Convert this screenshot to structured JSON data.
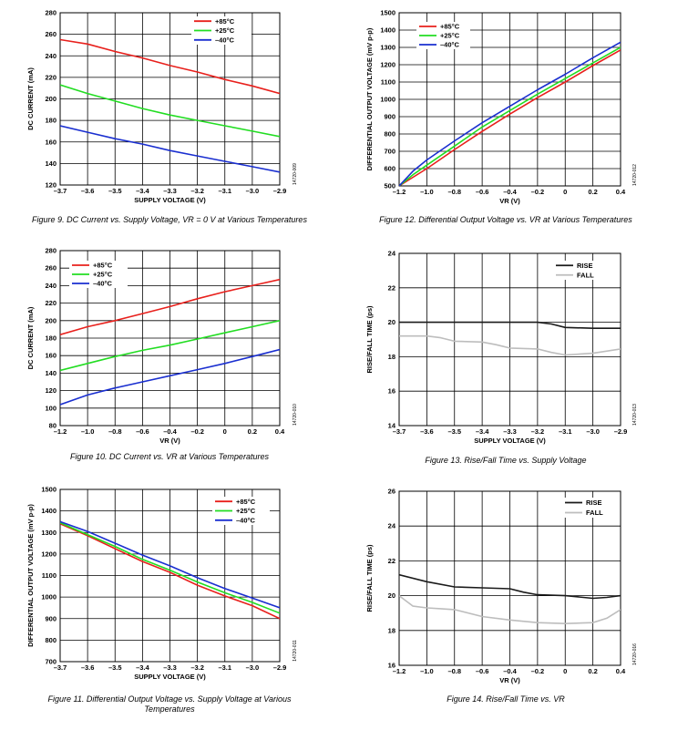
{
  "figures": [
    {
      "id": "fig9",
      "caption": [
        "Figure 9. DC Current vs. Supply Voltage, VR = 0 V at Various Temperatures"
      ],
      "code": "14720-009",
      "chart_data": {
        "type": "line",
        "xlabel": "SUPPLY VOLTAGE (V)",
        "ylabel": "DC CURRENT (mA)",
        "xlim": [
          -3.7,
          -2.9
        ],
        "ylim": [
          120,
          280
        ],
        "xticks": [
          -3.7,
          -3.6,
          -3.5,
          -3.4,
          -3.3,
          -3.2,
          -3.1,
          -3.0,
          -2.9
        ],
        "xtick_labels": [
          "–3.7",
          "–3.6",
          "–3.5",
          "–3.4",
          "–3.3",
          "–3.2",
          "–3.1",
          "–3.0",
          "–2.9"
        ],
        "yticks": [
          120,
          140,
          160,
          180,
          200,
          220,
          240,
          260,
          280
        ],
        "ytick_labels": [
          "120",
          "140",
          "160",
          "180",
          "200",
          "220",
          "240",
          "260",
          "280"
        ],
        "grid": true,
        "legend_position": "top-right",
        "series": [
          {
            "name": "+85°C",
            "color": "#e8201c",
            "x": [
              -3.7,
              -3.6,
              -3.5,
              -3.4,
              -3.3,
              -3.2,
              -3.1,
              -3.0,
              -2.9
            ],
            "y": [
              255,
              251,
              244,
              238,
              231,
              225,
              218,
              212,
              205
            ]
          },
          {
            "name": "+25°C",
            "color": "#22dd22",
            "x": [
              -3.7,
              -3.6,
              -3.5,
              -3.4,
              -3.3,
              -3.2,
              -3.1,
              -3.0,
              -2.9
            ],
            "y": [
              213,
              205,
              198,
              191,
              185,
              180,
              175,
              170,
              165
            ]
          },
          {
            "name": "–40°C",
            "color": "#1a2fd0",
            "x": [
              -3.7,
              -3.6,
              -3.5,
              -3.4,
              -3.3,
              -3.2,
              -3.1,
              -3.0,
              -2.9
            ],
            "y": [
              175,
              169,
              163,
              158,
              152,
              147,
              142,
              137,
              132
            ]
          }
        ]
      }
    },
    {
      "id": "fig12",
      "caption": [
        "Figure 12. Differential Output Voltage vs. VR at Various Temperatures"
      ],
      "code": "14720-012",
      "chart_data": {
        "type": "line",
        "xlabel": "VR (V)",
        "ylabel": "DIFFERENTIAL OUTPUT VOLTAGE (mV p-p)",
        "xlim": [
          -1.2,
          0.4
        ],
        "ylim": [
          500,
          1500
        ],
        "xticks": [
          -1.2,
          -1.0,
          -0.8,
          -0.6,
          -0.4,
          -0.2,
          0,
          0.2,
          0.4
        ],
        "xtick_labels": [
          "–1.2",
          "–1.0",
          "–0.8",
          "–0.6",
          "–0.4",
          "–0.2",
          "0",
          "0.2",
          "0.4"
        ],
        "yticks": [
          500,
          600,
          700,
          800,
          900,
          1000,
          1100,
          1200,
          1300,
          1400,
          1500
        ],
        "ytick_labels": [
          "500",
          "600",
          "700",
          "800",
          "900",
          "1000",
          "1100",
          "1200",
          "1300",
          "1400",
          "1500"
        ],
        "grid": true,
        "legend_position": "top-left",
        "series": [
          {
            "name": "+85°C",
            "color": "#e8201c",
            "x": [
              -1.2,
              -1.1,
              -1.0,
              -0.8,
              -0.6,
              -0.4,
              -0.2,
              0,
              0.2,
              0.4
            ],
            "y": [
              500,
              550,
              600,
              710,
              815,
              915,
              1010,
              1100,
              1195,
              1285
            ]
          },
          {
            "name": "+25°C",
            "color": "#22dd22",
            "x": [
              -1.2,
              -1.1,
              -1.0,
              -0.8,
              -0.6,
              -0.4,
              -0.2,
              0,
              0.2,
              0.4
            ],
            "y": [
              500,
              565,
              620,
              730,
              840,
              935,
              1030,
              1120,
              1210,
              1300
            ]
          },
          {
            "name": "–40°C",
            "color": "#1a2fd0",
            "x": [
              -1.2,
              -1.1,
              -1.0,
              -0.8,
              -0.6,
              -0.4,
              -0.2,
              0,
              0.2,
              0.4
            ],
            "y": [
              500,
              585,
              650,
              760,
              865,
              960,
              1055,
              1145,
              1240,
              1330
            ]
          }
        ]
      }
    },
    {
      "id": "fig10",
      "caption": [
        "Figure 10. DC Current vs. VR at Various Temperatures"
      ],
      "code": "14720-010",
      "chart_data": {
        "type": "line",
        "xlabel": "VR (V)",
        "ylabel": "DC CURRENT (mA)",
        "xlim": [
          -1.2,
          0.4
        ],
        "ylim": [
          80,
          280
        ],
        "xticks": [
          -1.2,
          -1.0,
          -0.8,
          -0.6,
          -0.4,
          -0.2,
          0,
          0.2,
          0.4
        ],
        "xtick_labels": [
          "–1.2",
          "–1.0",
          "–0.8",
          "–0.6",
          "–0.4",
          "–0.2",
          "0",
          "0.2",
          "0.4"
        ],
        "yticks": [
          80,
          100,
          120,
          140,
          160,
          180,
          200,
          220,
          240,
          260,
          280
        ],
        "ytick_labels": [
          "80",
          "100",
          "120",
          "140",
          "160",
          "180",
          "200",
          "220",
          "240",
          "260",
          "280"
        ],
        "grid": true,
        "legend_position": "top-left",
        "series": [
          {
            "name": "+85°C",
            "color": "#e8201c",
            "x": [
              -1.2,
              -1.0,
              -0.8,
              -0.6,
              -0.4,
              -0.2,
              0,
              0.2,
              0.4
            ],
            "y": [
              184,
              193,
              200,
              208,
              216,
              225,
              233,
              240,
              247
            ]
          },
          {
            "name": "+25°C",
            "color": "#22dd22",
            "x": [
              -1.2,
              -1.0,
              -0.8,
              -0.6,
              -0.4,
              -0.2,
              0,
              0.2,
              0.4
            ],
            "y": [
              143,
              151,
              159,
              166,
              172,
              179,
              186,
              193,
              200
            ]
          },
          {
            "name": "–40°C",
            "color": "#1a2fd0",
            "x": [
              -1.2,
              -1.0,
              -0.8,
              -0.6,
              -0.4,
              -0.2,
              0,
              0.2,
              0.4
            ],
            "y": [
              104,
              115,
              123,
              130,
              137,
              144,
              151,
              159,
              167
            ]
          }
        ]
      }
    },
    {
      "id": "fig13",
      "caption": [
        "Figure 13. Rise/Fall Time vs. Supply Voltage"
      ],
      "code": "14720-013",
      "chart_data": {
        "type": "line",
        "xlabel": "SUPPLY VOLTAGE (V)",
        "ylabel": "RISE/FALL TIME (ps)",
        "xlim": [
          -3.7,
          -2.9
        ],
        "ylim": [
          14,
          24
        ],
        "xticks": [
          -3.7,
          -3.6,
          -3.5,
          -3.4,
          -3.3,
          -3.2,
          -3.1,
          -3.0,
          -2.9
        ],
        "xtick_labels": [
          "–3.7",
          "–3.6",
          "–3.5",
          "–3.4",
          "–3.3",
          "–3.2",
          "–3.1",
          "–3.0",
          "–2.9"
        ],
        "yticks": [
          14,
          16,
          18,
          20,
          22,
          24
        ],
        "ytick_labels": [
          "14",
          "16",
          "18",
          "20",
          "22",
          "24"
        ],
        "grid": true,
        "legend_position": "top-right",
        "series": [
          {
            "name": "RISE",
            "color": "#1a1a1a",
            "x": [
              -3.7,
              -3.6,
              -3.5,
              -3.4,
              -3.3,
              -3.2,
              -3.15,
              -3.1,
              -3.0,
              -2.9
            ],
            "y": [
              20.0,
              20.0,
              20.0,
              20.0,
              20.0,
              20.0,
              19.9,
              19.7,
              19.65,
              19.65
            ]
          },
          {
            "name": "FALL",
            "color": "#bdbdbd",
            "x": [
              -3.7,
              -3.6,
              -3.55,
              -3.5,
              -3.4,
              -3.35,
              -3.3,
              -3.2,
              -3.15,
              -3.1,
              -3.0,
              -2.9
            ],
            "y": [
              19.2,
              19.2,
              19.1,
              18.9,
              18.85,
              18.7,
              18.5,
              18.45,
              18.25,
              18.1,
              18.2,
              18.45
            ]
          }
        ]
      }
    },
    {
      "id": "fig11",
      "caption": [
        "Figure 11. Differential Output Voltage vs. Supply Voltage at Various",
        "Temperatures"
      ],
      "code": "14720-011",
      "chart_data": {
        "type": "line",
        "xlabel": "SUPPLY VOLTAGE (V)",
        "ylabel": "DIFFERENTIAL OUTPUT VOLTAGE (mV p-p)",
        "xlim": [
          -3.7,
          -2.9
        ],
        "ylim": [
          700,
          1500
        ],
        "xticks": [
          -3.7,
          -3.6,
          -3.5,
          -3.4,
          -3.3,
          -3.2,
          -3.1,
          -3.0,
          -2.9
        ],
        "xtick_labels": [
          "–3.7",
          "–3.6",
          "–3.5",
          "–3.4",
          "–3.3",
          "–3.2",
          "–3.1",
          "–3.0",
          "–2.9"
        ],
        "yticks": [
          700,
          800,
          900,
          1000,
          1100,
          1200,
          1300,
          1400,
          1500
        ],
        "ytick_labels": [
          "700",
          "800",
          "900",
          "1000",
          "1100",
          "1200",
          "1300",
          "1400",
          "1500"
        ],
        "grid": true,
        "legend_position": "top-right",
        "series": [
          {
            "name": "+85°C",
            "color": "#e8201c",
            "x": [
              -3.7,
              -3.6,
              -3.5,
              -3.4,
              -3.3,
              -3.2,
              -3.1,
              -3.0,
              -2.9
            ],
            "y": [
              1340,
              1285,
              1225,
              1165,
              1115,
              1055,
              1005,
              960,
              900
            ]
          },
          {
            "name": "+25°C",
            "color": "#22dd22",
            "x": [
              -3.7,
              -3.6,
              -3.5,
              -3.4,
              -3.3,
              -3.2,
              -3.1,
              -3.0,
              -2.9
            ],
            "y": [
              1345,
              1290,
              1235,
              1175,
              1125,
              1070,
              1020,
              975,
              925
            ]
          },
          {
            "name": "–40°C",
            "color": "#1a2fd0",
            "x": [
              -3.7,
              -3.6,
              -3.5,
              -3.4,
              -3.3,
              -3.2,
              -3.1,
              -3.0,
              -2.9
            ],
            "y": [
              1350,
              1305,
              1250,
              1195,
              1145,
              1090,
              1040,
              995,
              950
            ]
          }
        ]
      }
    },
    {
      "id": "fig14",
      "caption": [
        "Figure 14. Rise/Fall Time vs. VR"
      ],
      "code": "14720-016",
      "chart_data": {
        "type": "line",
        "xlabel": "VR (V)",
        "ylabel": "RISE/FALL TIME (ps)",
        "xlim": [
          -1.2,
          0.4
        ],
        "ylim": [
          16,
          26
        ],
        "xticks": [
          -1.2,
          -1.0,
          -0.8,
          -0.6,
          -0.4,
          -0.2,
          0,
          0.2,
          0.4
        ],
        "xtick_labels": [
          "–1.2",
          "–1.0",
          "–0.8",
          "–0.6",
          "–0.4",
          "–0.2",
          "0",
          "0.2",
          "0.4"
        ],
        "yticks": [
          16,
          18,
          20,
          22,
          24,
          26
        ],
        "ytick_labels": [
          "16",
          "18",
          "20",
          "22",
          "24",
          "26"
        ],
        "grid": true,
        "legend_position": "top-right",
        "series": [
          {
            "name": "RISE",
            "color": "#1a1a1a",
            "x": [
              -1.2,
              -1.0,
              -0.8,
              -0.6,
              -0.4,
              -0.3,
              -0.2,
              0,
              0.2,
              0.3,
              0.4
            ],
            "y": [
              21.2,
              20.8,
              20.5,
              20.45,
              20.4,
              20.2,
              20.05,
              20.0,
              19.85,
              19.9,
              20.0
            ]
          },
          {
            "name": "FALL",
            "color": "#bdbdbd",
            "x": [
              -1.2,
              -1.1,
              -1.0,
              -0.9,
              -0.8,
              -0.6,
              -0.4,
              -0.2,
              0,
              0.2,
              0.3,
              0.4
            ],
            "y": [
              20.0,
              19.4,
              19.3,
              19.25,
              19.2,
              18.8,
              18.6,
              18.45,
              18.4,
              18.45,
              18.7,
              19.2
            ]
          }
        ]
      }
    }
  ]
}
